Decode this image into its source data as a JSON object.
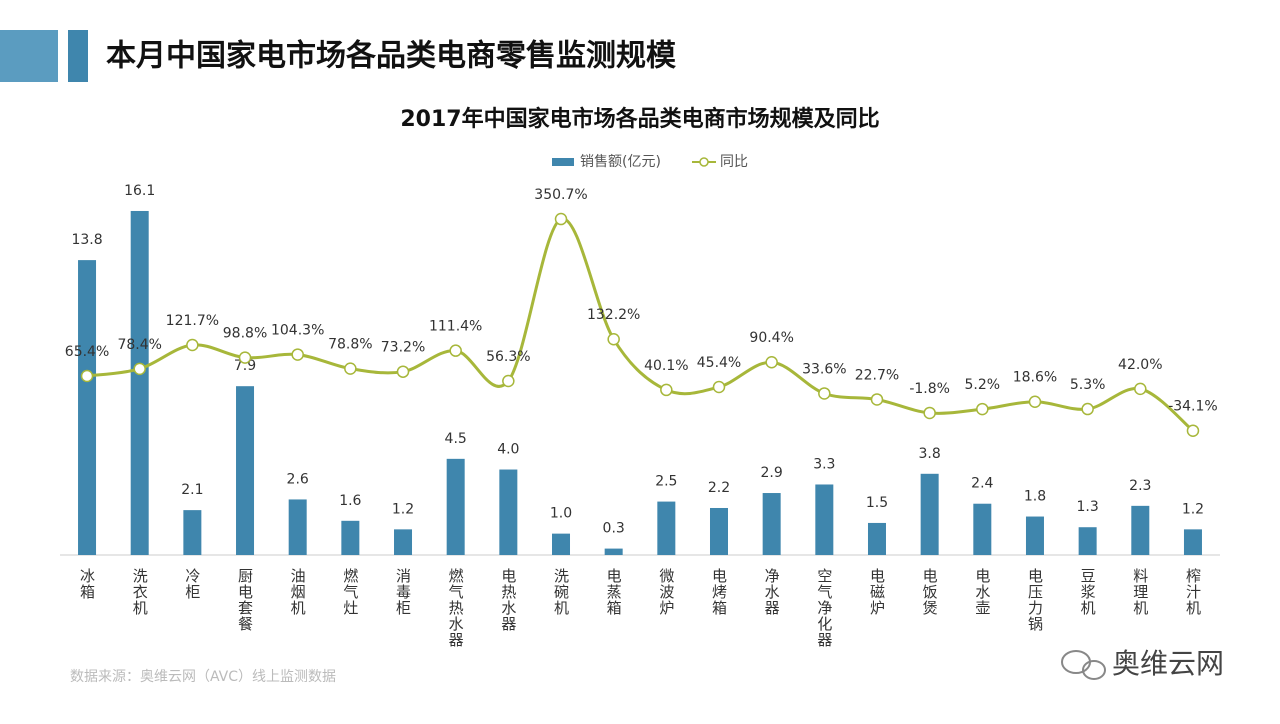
{
  "header": {
    "title": "本月中国家电市场各品类电商零售监测规模"
  },
  "chart_data": {
    "type": "bar_line",
    "title": "2017年中国家电市场各品类电商市场规模及同比",
    "categories": [
      "冰箱",
      "洗衣机",
      "冷柜",
      "厨电套餐",
      "油烟机",
      "燃气灶",
      "消毒柜",
      "燃气热水器",
      "电热水器",
      "洗碗机",
      "电蒸箱",
      "微波炉",
      "电烤箱",
      "净水器",
      "空气净化器",
      "电磁炉",
      "电饭煲",
      "电水壶",
      "电压力锅",
      "豆浆机",
      "料理机",
      "榨汁机"
    ],
    "series": [
      {
        "name": "销售额(亿元)",
        "type": "bar",
        "color": "#3f86ad",
        "values": [
          13.8,
          16.1,
          2.1,
          7.9,
          2.6,
          1.6,
          1.2,
          4.5,
          4.0,
          1.0,
          0.3,
          2.5,
          2.2,
          2.9,
          3.3,
          1.5,
          3.8,
          2.4,
          1.8,
          1.3,
          2.3,
          1.2
        ],
        "value_labels": [
          "13.8",
          "16.1",
          "2.1",
          "7.9",
          "2.6",
          "1.6",
          "1.2",
          "4.5",
          "4.0",
          "1.0",
          "0.3",
          "2.5",
          "2.2",
          "2.9",
          "3.3",
          "1.5",
          "3.8",
          "2.4",
          "1.8",
          "1.3",
          "2.3",
          "1.2"
        ]
      },
      {
        "name": "同比",
        "type": "line",
        "axis": "y2",
        "color": "#a7b73a",
        "values": [
          65.4,
          78.4,
          121.7,
          98.8,
          104.3,
          78.8,
          73.2,
          111.4,
          56.3,
          350.7,
          132.2,
          40.1,
          45.4,
          90.4,
          33.6,
          22.7,
          -1.8,
          5.2,
          18.6,
          5.3,
          42.0,
          -34.1
        ],
        "value_labels": [
          "65.4%",
          "78.4%",
          "121.7%",
          "98.8%",
          "104.3%",
          "78.8%",
          "73.2%",
          "111.4%",
          "56.3%",
          "350.7%",
          "132.2%",
          "40.1%",
          "45.4%",
          "90.4%",
          "33.6%",
          "22.7%",
          "-1.8%",
          "5.2%",
          "18.6%",
          "5.3%",
          "42.0%",
          "-34.1%"
        ]
      }
    ],
    "ylim": [
      0,
      19
    ],
    "y2lim": [
      -260,
      478
    ],
    "legend": "top"
  },
  "footer": {
    "source": "数据来源：奥维云网（AVC）线上监测数据",
    "watermark": "奥维云网"
  }
}
